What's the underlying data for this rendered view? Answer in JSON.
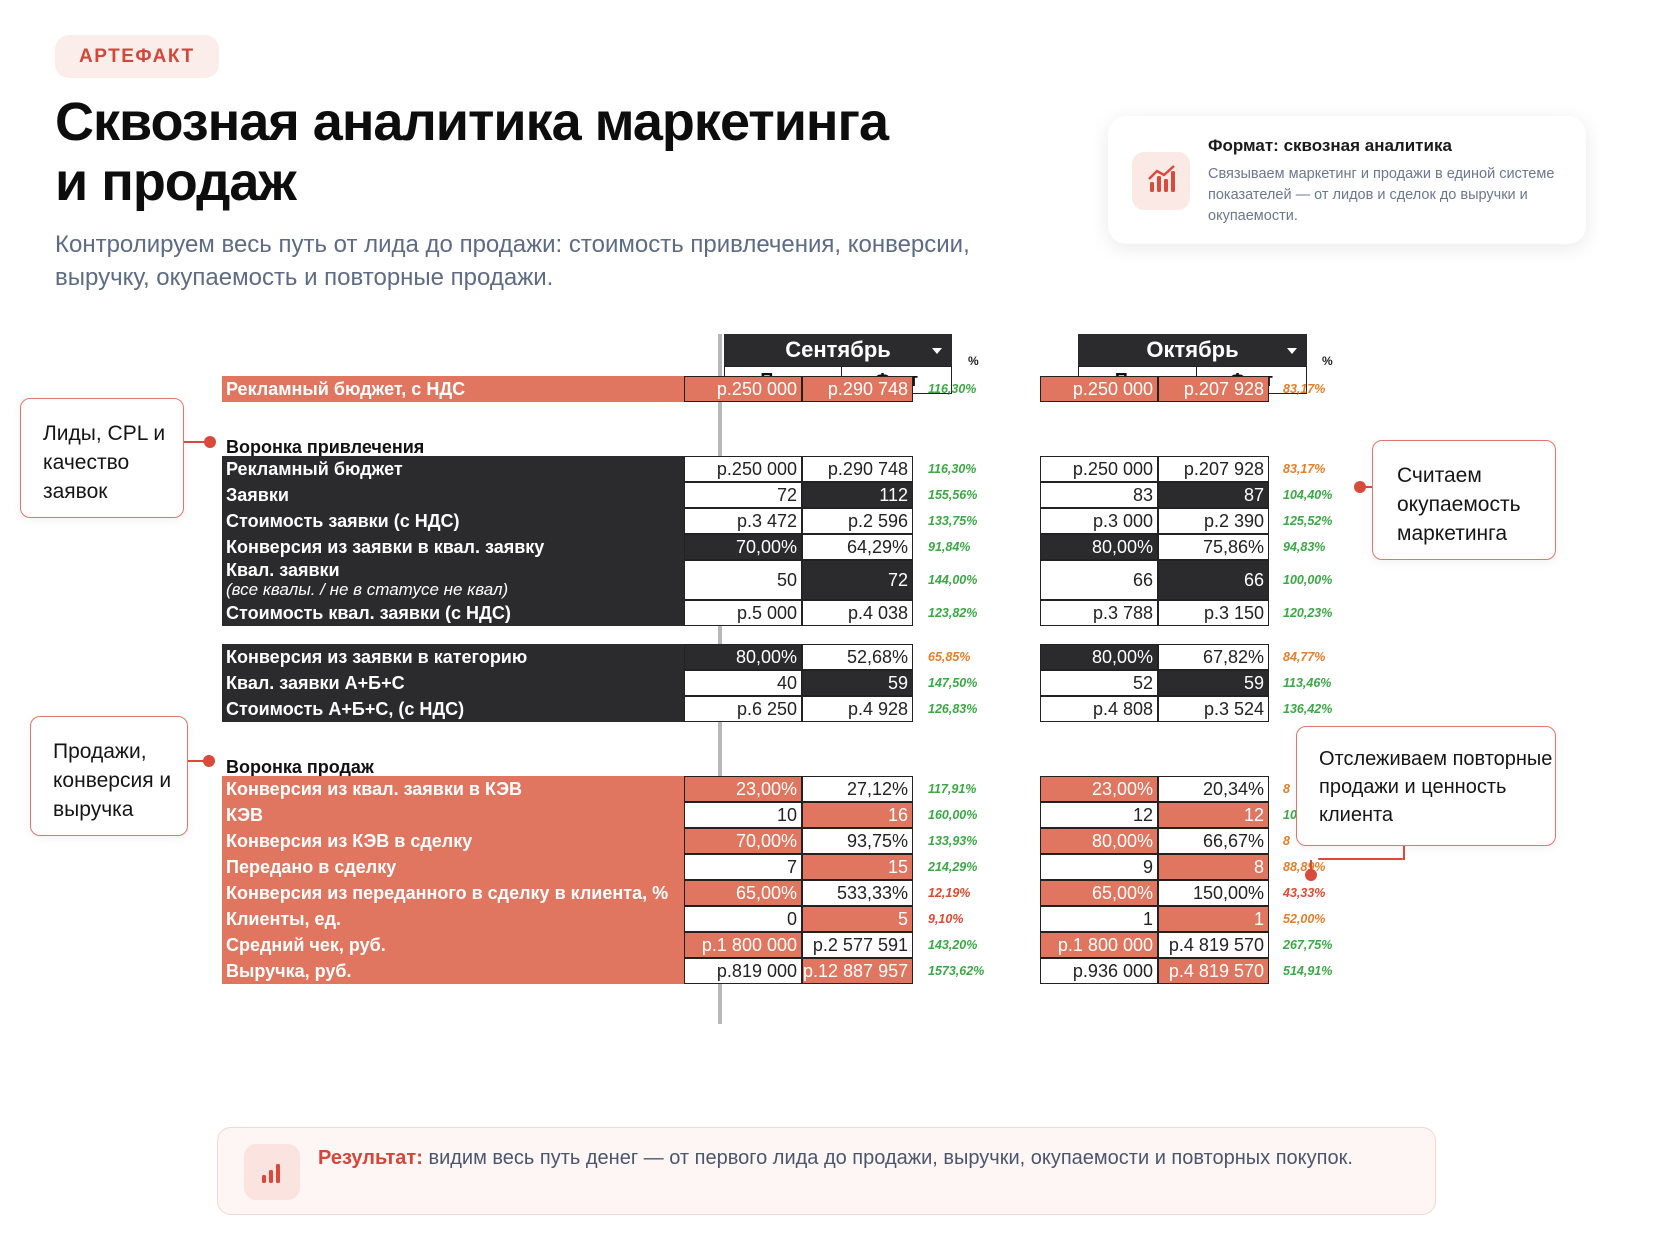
{
  "badge": "АРТЕФАКТ",
  "title_line1": "Сквозная аналитика маркетинга",
  "title_line2": "и продаж",
  "subtitle": "Контролируем весь путь от лида до продажи: стоимость привлечения, конверсии, выручку, окупаемость и повторные продажи.",
  "format_card": {
    "title": "Формат: сквозная аналитика",
    "text": "Связываем маркетинг и продажи в единой системе показателей — от лидов и сделок до выручки и окупаемости.",
    "icon": "bar-chart-icon"
  },
  "colors": {
    "accent": "#d4463a",
    "dark_cell": "#2b2b2d",
    "red_cell": "#e0765f",
    "pct_green": "#3aa845",
    "pct_red": "#e1492e",
    "pct_orange": "#e67e2a"
  },
  "months": [
    {
      "name": "Сентябрь",
      "plan": "План",
      "fact": "Факт",
      "pct": "%"
    },
    {
      "name": "Октябрь",
      "plan": "План",
      "fact": "Факт",
      "pct": "%"
    }
  ],
  "rows": [
    {
      "label": "Рекламный бюджет, с НДС",
      "style": "red",
      "sep_plan": "р.250 000",
      "sep_fact": "р.290 748",
      "sep_pct": "116,30%",
      "sep_pct_color": "green",
      "oct_plan": "р.250 000",
      "oct_fact": "р.207 928",
      "oct_pct": "83,17%",
      "oct_pct_color": "orange"
    },
    {
      "label": "Воронка привлечения",
      "style": "plain"
    },
    {
      "label": "Рекламный бюджет",
      "style": "dark",
      "sep_plan": "р.250 000",
      "sep_fact": "р.290 748",
      "sep_pct": "116,30%",
      "sep_pct_color": "green",
      "oct_plan": "р.250 000",
      "oct_fact": "р.207 928",
      "oct_pct": "83,17%",
      "oct_pct_color": "orange"
    },
    {
      "label": "Заявки",
      "style": "dark",
      "sep_plan": "72",
      "sep_fact": "112",
      "sep_pct": "155,56%",
      "sep_pct_color": "green",
      "oct_plan": "83",
      "oct_fact": "87",
      "oct_pct": "104,40%",
      "oct_pct_color": "green"
    },
    {
      "label": "Стоимость заявки (с НДС)",
      "style": "dark",
      "sep_plan": "р.3 472",
      "sep_fact": "р.2 596",
      "sep_pct": "133,75%",
      "sep_pct_color": "green",
      "oct_plan": "р.3 000",
      "oct_fact": "р.2 390",
      "oct_pct": "125,52%",
      "oct_pct_color": "green"
    },
    {
      "label": "Конверсия из заявки в квал. заявку",
      "style": "dark",
      "sep_plan": "70,00%",
      "sep_fact": "64,29%",
      "sep_pct": "91,84%",
      "sep_pct_color": "green",
      "oct_plan": "80,00%",
      "oct_fact": "75,86%",
      "oct_pct": "94,83%",
      "oct_pct_color": "green"
    },
    {
      "label": "Квал. заявки",
      "note": "(все квалы. / не в статусе не квал)",
      "style": "dark",
      "sep_plan": "50",
      "sep_fact": "72",
      "sep_pct": "144,00%",
      "sep_pct_color": "green",
      "oct_plan": "66",
      "oct_fact": "66",
      "oct_pct": "100,00%",
      "oct_pct_color": "green"
    },
    {
      "label": "Стоимость квал. заявки (с НДС)",
      "style": "dark",
      "sep_plan": "р.5 000",
      "sep_fact": "р.4 038",
      "sep_pct": "123,82%",
      "sep_pct_color": "green",
      "oct_plan": "р.3 788",
      "oct_fact": "р.3 150",
      "oct_pct": "120,23%",
      "oct_pct_color": "green"
    },
    {
      "label": "Конверсия из заявки в категорию",
      "style": "dark",
      "sep_plan": "80,00%",
      "sep_fact": "52,68%",
      "sep_pct": "65,85%",
      "sep_pct_color": "orange",
      "oct_plan": "80,00%",
      "oct_fact": "67,82%",
      "oct_pct": "84,77%",
      "oct_pct_color": "orange"
    },
    {
      "label": "Квал. заявки А+Б+С",
      "style": "dark",
      "sep_plan": "40",
      "sep_fact": "59",
      "sep_pct": "147,50%",
      "sep_pct_color": "green",
      "oct_plan": "52",
      "oct_fact": "59",
      "oct_pct": "113,46%",
      "oct_pct_color": "green"
    },
    {
      "label": "Стоимость А+Б+С, (с НДС)",
      "style": "dark",
      "sep_plan": "р.6 250",
      "sep_fact": "р.4 928",
      "sep_pct": "126,83%",
      "sep_pct_color": "green",
      "oct_plan": "р.4 808",
      "oct_fact": "р.3 524",
      "oct_pct": "136,42%",
      "oct_pct_color": "green"
    },
    {
      "label": "Воронка продаж",
      "style": "plain"
    },
    {
      "label": "Конверсия из квал. заявки в КЭВ",
      "style": "red",
      "sep_plan": "23,00%",
      "sep_fact": "27,12%",
      "sep_pct": "117,91%",
      "sep_pct_color": "green",
      "oct_plan": "23,00%",
      "oct_fact": "20,34%",
      "oct_pct": "8",
      "oct_pct_color": "orange"
    },
    {
      "label": "КЭВ",
      "style": "red",
      "sep_plan": "10",
      "sep_fact": "16",
      "sep_pct": "160,00%",
      "sep_pct_color": "green",
      "oct_plan": "12",
      "oct_fact": "12",
      "oct_pct": "10",
      "oct_pct_color": "green"
    },
    {
      "label": "Конверсия из КЭВ в сделку",
      "style": "red",
      "sep_plan": "70,00%",
      "sep_fact": "93,75%",
      "sep_pct": "133,93%",
      "sep_pct_color": "green",
      "oct_plan": "80,00%",
      "oct_fact": "66,67%",
      "oct_pct": "8",
      "oct_pct_color": "orange"
    },
    {
      "label": "Передано в сделку",
      "style": "red",
      "sep_plan": "7",
      "sep_fact": "15",
      "sep_pct": "214,29%",
      "sep_pct_color": "green",
      "oct_plan": "9",
      "oct_fact": "8",
      "oct_pct": "88,89%",
      "oct_pct_color": "orange"
    },
    {
      "label": "Конверсия из переданного в сделку в клиента, %",
      "style": "red",
      "sep_plan": "65,00%",
      "sep_fact": "533,33%",
      "sep_pct": "12,19%",
      "sep_pct_color": "red",
      "oct_plan": "65,00%",
      "oct_fact": "150,00%",
      "oct_pct": "43,33%",
      "oct_pct_color": "red"
    },
    {
      "label": "Клиенты, ед.",
      "style": "red",
      "sep_plan": "0",
      "sep_fact": "5",
      "sep_pct": "9,10%",
      "sep_pct_color": "red",
      "oct_plan": "1",
      "oct_fact": "1",
      "oct_pct": "52,00%",
      "oct_pct_color": "orange"
    },
    {
      "label": "Средний чек, руб.",
      "style": "red",
      "sep_plan": "р.1 800 000",
      "sep_fact": "р.2 577 591",
      "sep_pct": "143,20%",
      "sep_pct_color": "green",
      "oct_plan": "р.1 800 000",
      "oct_fact": "р.4 819 570",
      "oct_pct": "267,75%",
      "oct_pct_color": "green"
    },
    {
      "label": "Выручка, руб.",
      "style": "red",
      "sep_plan": "р.819 000",
      "sep_fact": "р.12 887 957",
      "sep_pct": "1573,62%",
      "sep_pct_color": "green",
      "oct_plan": "р.936 000",
      "oct_fact": "р.4 819 570",
      "oct_pct": "514,91%",
      "oct_pct_color": "green"
    }
  ],
  "callouts": {
    "leads": "Лиды, CPL и качество заявок",
    "sales": "Продажи, конверсия и выручка",
    "roi": "Считаем окупаемость маркетинга",
    "repeat": "Отслеживаем повторные продажи и ценность клиента"
  },
  "result": {
    "label": "Результат:",
    "text": "видим весь путь денег — от первого лида до продажи, выручки, окупаемости и повторных покупок.",
    "icon": "bar-chart-icon"
  }
}
